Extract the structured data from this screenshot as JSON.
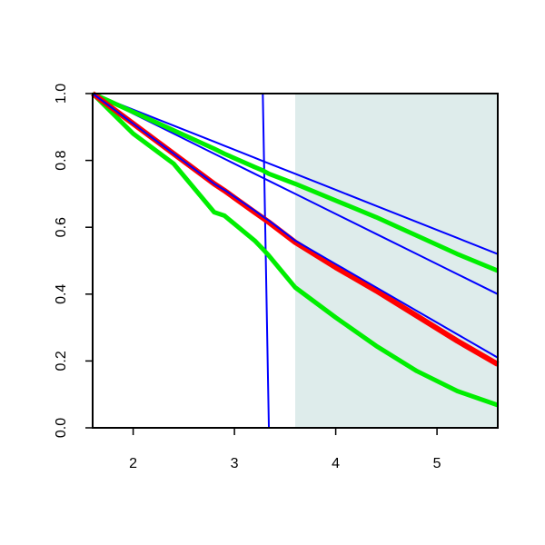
{
  "chart_data": {
    "type": "line",
    "x": [
      1.6,
      2.0,
      2.4,
      2.8,
      2.9,
      3.2,
      3.28,
      3.34,
      3.6,
      4.0,
      4.4,
      4.8,
      5.2,
      5.6
    ],
    "series": [
      {
        "color": "#0000ff",
        "width": 2,
        "values": [
          1,
          1,
          1,
          1,
          1,
          1,
          1,
          0,
          0,
          0,
          0,
          0,
          0,
          0
        ]
      },
      {
        "color": "#0000ff",
        "width": 2,
        "values": [
          1,
          0.952,
          0.904,
          0.856,
          0.844,
          0.808,
          0.798,
          0.791,
          0.76,
          0.712,
          0.664,
          0.616,
          0.568,
          0.52
        ]
      },
      {
        "color": "#0000ff",
        "width": 2,
        "values": [
          1,
          0.94,
          0.88,
          0.82,
          0.805,
          0.76,
          0.748,
          0.739,
          0.7,
          0.64,
          0.58,
          0.52,
          0.46,
          0.4
        ]
      },
      {
        "color": "#00ee00",
        "width": 5,
        "values": [
          1,
          0.945,
          0.89,
          0.835,
          0.82,
          0.78,
          0.77,
          0.76,
          0.73,
          0.68,
          0.63,
          0.575,
          0.52,
          0.47
        ]
      },
      {
        "color": "#00ee00",
        "width": 5,
        "values": [
          1,
          0.88,
          0.79,
          0.645,
          0.635,
          0.56,
          0.535,
          0.515,
          0.42,
          0.33,
          0.245,
          0.17,
          0.11,
          0.068
        ]
      },
      {
        "color": "#ff0000",
        "width": 6,
        "values": [
          1,
          0.91,
          0.82,
          0.73,
          0.71,
          0.645,
          0.628,
          0.615,
          0.555,
          0.48,
          0.41,
          0.335,
          0.26,
          0.19
        ]
      },
      {
        "color": "#0000ff",
        "width": 2,
        "values": [
          1,
          0.91,
          0.82,
          0.73,
          0.712,
          0.65,
          0.632,
          0.62,
          0.56,
          0.49,
          0.42,
          0.35,
          0.28,
          0.21
        ]
      }
    ],
    "shaded_region": {
      "x": [
        3.6,
        5.6
      ],
      "color": "#deeceb"
    },
    "xlim": [
      1.6,
      5.6
    ],
    "ylim": [
      0,
      1
    ],
    "xticks": [
      2,
      3,
      4,
      5
    ],
    "yticks": [
      {
        "value": 0,
        "label": "0.0"
      },
      0.2,
      0.4,
      0.6,
      0.8,
      {
        "value": 1,
        "label": "1.0"
      }
    ]
  }
}
